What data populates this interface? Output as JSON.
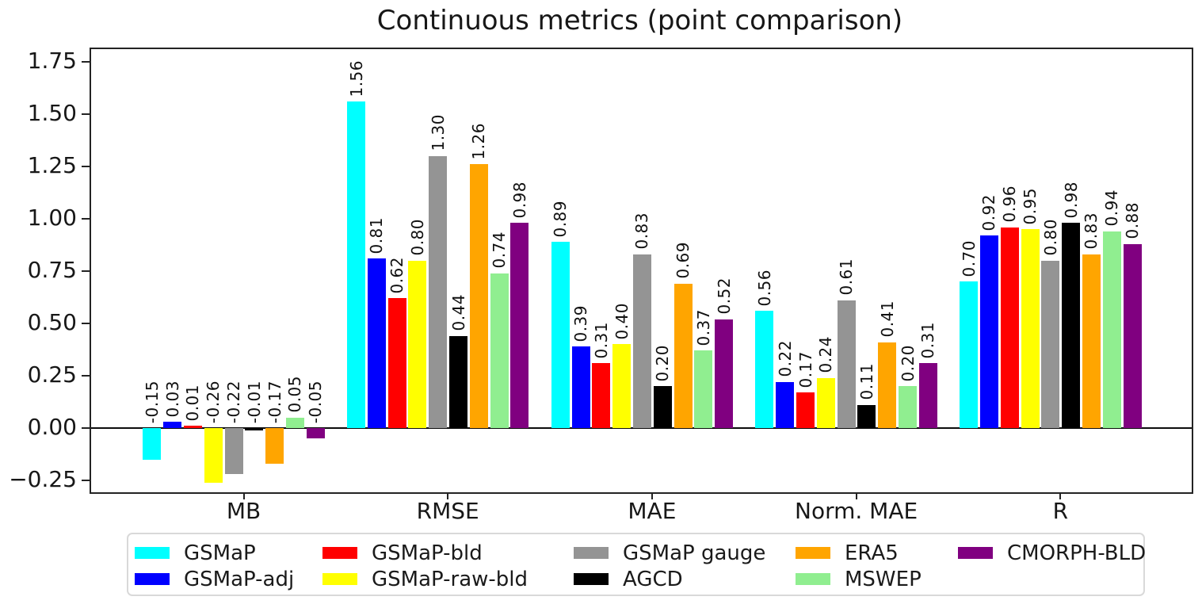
{
  "chart_data": {
    "type": "bar",
    "title": "Continuous metrics (point comparison)",
    "categories": [
      "MB",
      "RMSE",
      "MAE",
      "Norm. MAE",
      "R"
    ],
    "series": [
      {
        "name": "GSMaP",
        "color": "#00ffff",
        "values": [
          -0.15,
          1.56,
          0.89,
          0.56,
          0.7
        ]
      },
      {
        "name": "GSMaP-adj",
        "color": "#0000ff",
        "values": [
          0.03,
          0.81,
          0.39,
          0.22,
          0.92
        ]
      },
      {
        "name": "GSMaP-bld",
        "color": "#ff0000",
        "values": [
          0.01,
          0.62,
          0.31,
          0.17,
          0.96
        ]
      },
      {
        "name": "GSMaP-raw-bld",
        "color": "#ffff00",
        "values": [
          -0.26,
          0.8,
          0.4,
          0.24,
          0.95
        ]
      },
      {
        "name": "GSMaP gauge",
        "color": "#949494",
        "values": [
          -0.22,
          1.3,
          0.83,
          0.61,
          0.8
        ]
      },
      {
        "name": "AGCD",
        "color": "#000000",
        "values": [
          -0.01,
          0.44,
          0.2,
          0.11,
          0.98
        ]
      },
      {
        "name": "ERA5",
        "color": "#ffa500",
        "values": [
          -0.17,
          1.26,
          0.69,
          0.41,
          0.83
        ]
      },
      {
        "name": "MSWEP",
        "color": "#90ee90",
        "values": [
          0.05,
          0.74,
          0.37,
          0.2,
          0.94
        ]
      },
      {
        "name": "CMORPH-BLD",
        "color": "#800080",
        "values": [
          -0.05,
          0.98,
          0.52,
          0.31,
          0.88
        ]
      }
    ],
    "y_ticks": [
      -0.25,
      0.0,
      0.25,
      0.5,
      0.75,
      1.0,
      1.25,
      1.5,
      1.75
    ],
    "y_tick_labels": [
      "−0.25",
      "0.00",
      "0.25",
      "0.50",
      "0.75",
      "1.00",
      "1.25",
      "1.50",
      "1.75"
    ],
    "ylim": [
      -0.31,
      1.81
    ],
    "bar_label_decimals": 2,
    "grid": false,
    "legend_position": "bottom",
    "legend_columns": [
      [
        "GSMaP",
        "GSMaP-adj"
      ],
      [
        "GSMaP-bld",
        "GSMaP-raw-bld"
      ],
      [
        "GSMaP gauge",
        "AGCD"
      ],
      [
        "ERA5",
        "MSWEP"
      ],
      [
        "CMORPH-BLD"
      ]
    ]
  }
}
